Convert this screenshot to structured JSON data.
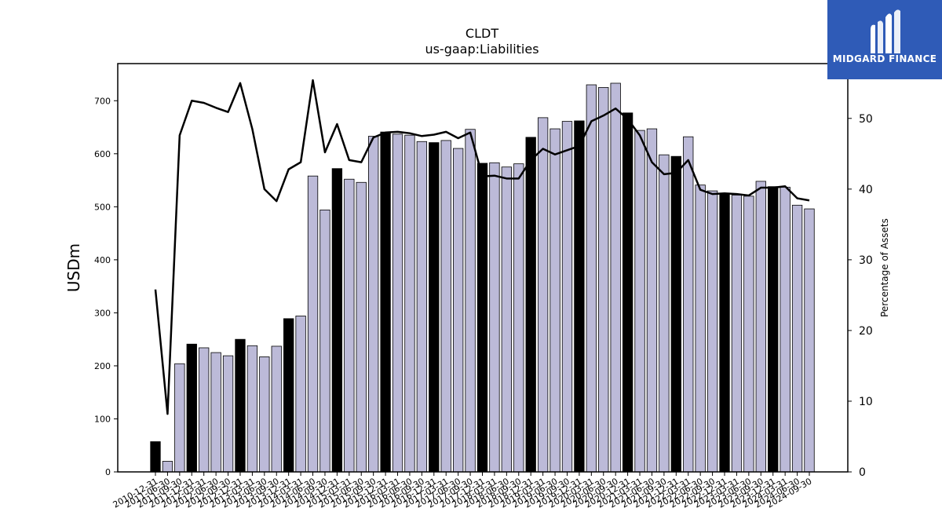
{
  "brand": {
    "name": "MIDGARD FINANCE",
    "bg_color": "#2f5bb7"
  },
  "chart_data": {
    "type": "bar",
    "title": "CLDT",
    "subtitle": "us-gaap:Liabilities",
    "ylabel": "USDm",
    "y2label": "Percentage of Assets",
    "ylim": [
      0,
      770
    ],
    "y2lim": [
      0,
      57.75
    ],
    "yticks": [
      0,
      100,
      200,
      300,
      400,
      500,
      600,
      700
    ],
    "y2ticks": [
      0,
      10,
      20,
      30,
      40,
      50
    ],
    "categories": [
      "2010-12-31",
      "2011-06-30",
      "2011-09-30",
      "2011-12-31",
      "2012-03-31",
      "2012-06-30",
      "2012-09-30",
      "2012-12-31",
      "2013-03-31",
      "2013-06-30",
      "2013-09-30",
      "2013-12-31",
      "2014-03-31",
      "2014-06-30",
      "2014-09-30",
      "2014-12-31",
      "2015-03-31",
      "2015-06-30",
      "2015-09-30",
      "2015-12-31",
      "2016-03-31",
      "2016-06-30",
      "2016-09-30",
      "2016-12-31",
      "2017-03-31",
      "2017-06-30",
      "2017-09-30",
      "2017-12-31",
      "2018-03-31",
      "2018-06-30",
      "2018-09-30",
      "2018-12-31",
      "2019-03-31",
      "2019-06-30",
      "2019-09-30",
      "2019-12-31",
      "2020-03-31",
      "2020-06-30",
      "2020-09-30",
      "2020-12-31",
      "2021-03-31",
      "2021-06-30",
      "2021-09-30",
      "2021-12-31",
      "2022-03-31",
      "2022-06-30",
      "2022-09-30",
      "2022-12-31",
      "2023-03-31",
      "2023-06-30",
      "2023-09-30",
      "2023-12-31",
      "2024-03-31",
      "2024-06-30",
      "2024-09-30"
    ],
    "series": [
      {
        "name": "USDm",
        "type": "bar",
        "values": [
          57,
          20,
          204,
          241,
          234,
          225,
          219,
          250,
          238,
          217,
          237,
          289,
          294,
          558,
          494,
          572,
          552,
          546,
          633,
          641,
          637,
          635,
          623,
          621,
          625,
          610,
          646,
          582,
          583,
          575,
          581,
          631,
          668,
          647,
          661,
          662,
          730,
          725,
          733,
          677,
          644,
          647,
          598,
          595,
          632,
          541,
          530,
          525,
          522,
          520,
          548,
          538,
          537,
          503,
          496
        ],
        "highlight": [
          true,
          false,
          false,
          true,
          false,
          false,
          false,
          true,
          false,
          false,
          false,
          true,
          false,
          false,
          false,
          true,
          false,
          false,
          false,
          true,
          false,
          false,
          false,
          true,
          false,
          false,
          false,
          true,
          false,
          false,
          false,
          true,
          false,
          false,
          false,
          true,
          false,
          false,
          false,
          true,
          false,
          false,
          false,
          true,
          false,
          false,
          false,
          true,
          false,
          false,
          false,
          true,
          false,
          false,
          false
        ],
        "color": "#bcbad8",
        "highlight_color": "#000000"
      },
      {
        "name": "Percentage of Assets",
        "type": "line",
        "axis": "right",
        "values": [
          25.8,
          8.2,
          47.6,
          52.5,
          52.2,
          51.5,
          50.9,
          55.0,
          48.5,
          40.0,
          38.3,
          42.8,
          43.8,
          55.4,
          45.2,
          49.2,
          44.1,
          43.8,
          47.3,
          48.0,
          48.1,
          47.9,
          47.5,
          47.7,
          48.1,
          47.2,
          48.0,
          41.8,
          41.9,
          41.5,
          41.5,
          44.1,
          45.7,
          44.9,
          45.5,
          46.1,
          49.6,
          50.4,
          51.4,
          49.9,
          47.6,
          43.8,
          42.1,
          42.3,
          44.1,
          39.9,
          39.3,
          39.4,
          39.3,
          39.1,
          40.2,
          40.2,
          40.4,
          38.7,
          38.4
        ],
        "color": "#000000"
      }
    ]
  }
}
